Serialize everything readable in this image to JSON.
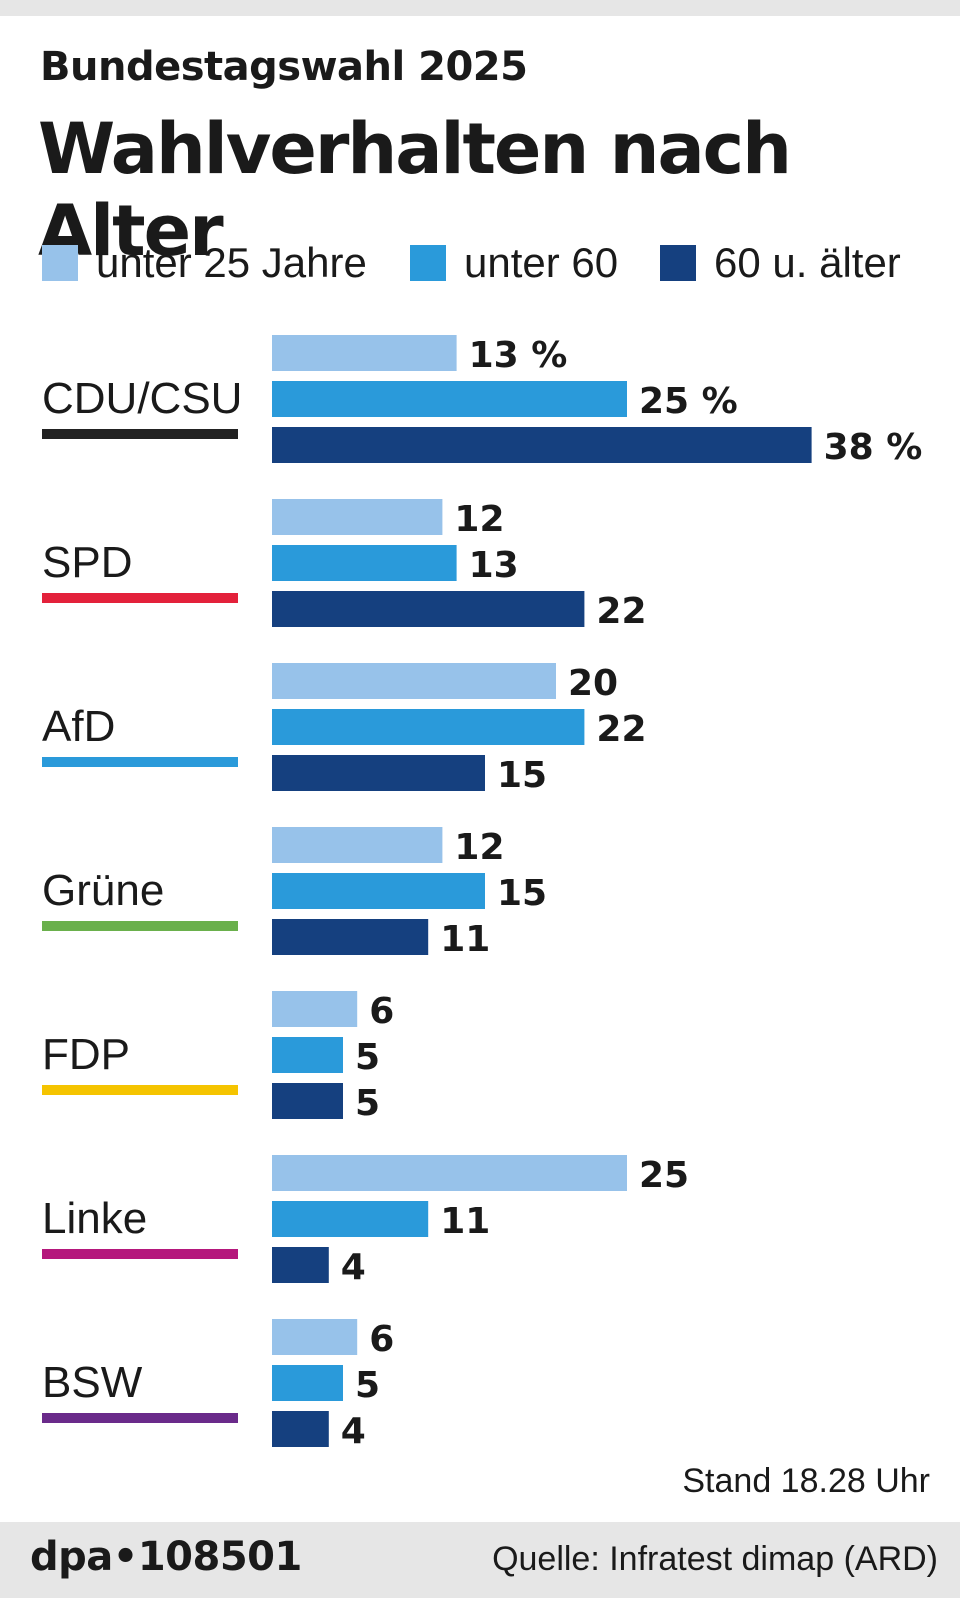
{
  "header": {
    "supertitle": "Bundestagswahl 2025",
    "title": "Wahlverhalten nach Alter"
  },
  "legend": [
    {
      "label": "unter 25 Jahre",
      "color": "#97c2ea"
    },
    {
      "label": "unter 60",
      "color": "#2a9ada"
    },
    {
      "label": "60 u. älter",
      "color": "#15407f"
    }
  ],
  "chart_data": {
    "type": "bar",
    "orientation": "horizontal",
    "title": "Wahlverhalten nach Alter",
    "unit": "%",
    "categories": [
      "CDU/CSU",
      "SPD",
      "AfD",
      "Grüne",
      "FDP",
      "Linke",
      "BSW"
    ],
    "category_colors": [
      "#222222",
      "#e3213b",
      "#2a9ada",
      "#6ab04c",
      "#f5c400",
      "#b5177c",
      "#6a2a8a"
    ],
    "series": [
      {
        "name": "unter 25 Jahre",
        "color": "#97c2ea",
        "values": [
          13,
          12,
          20,
          12,
          6,
          25,
          6
        ],
        "labels": [
          "13 %",
          "12",
          "20",
          "12",
          "6",
          "25",
          "6"
        ]
      },
      {
        "name": "unter 60",
        "color": "#2a9ada",
        "values": [
          25,
          13,
          22,
          15,
          5,
          11,
          5
        ],
        "labels": [
          "25 %",
          "13",
          "22",
          "15",
          "5",
          "11",
          "5"
        ]
      },
      {
        "name": "60 u. älter",
        "color": "#15407f",
        "values": [
          38,
          22,
          15,
          11,
          5,
          4,
          4
        ],
        "labels": [
          "38 %",
          "22",
          "15",
          "11",
          "5",
          "4",
          "4"
        ]
      }
    ],
    "xlim": [
      0,
      40
    ]
  },
  "footer": {
    "stand": "Stand 18.28 Uhr",
    "agency": "dpa•108501",
    "source": "Quelle: Infratest dimap (ARD)"
  }
}
